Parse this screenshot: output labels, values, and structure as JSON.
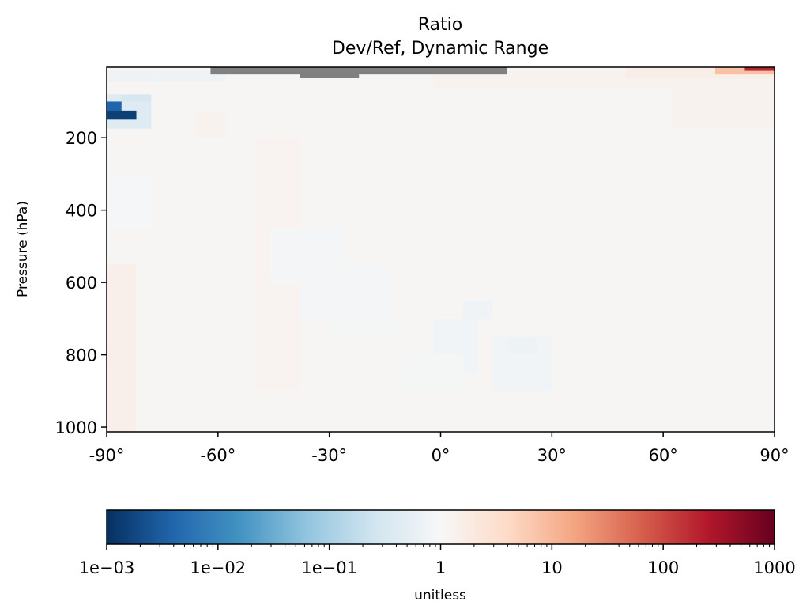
{
  "chart_data": {
    "type": "heatmap",
    "title": "Ratio",
    "subtitle": "Dev/Ref, Dynamic Range",
    "xlabel": "",
    "ylabel": "Pressure (hPa)",
    "x_ticks": [
      {
        "value": -90,
        "label": "-90°"
      },
      {
        "value": -60,
        "label": "-60°"
      },
      {
        "value": -30,
        "label": "-30°"
      },
      {
        "value": 0,
        "label": "0°"
      },
      {
        "value": 30,
        "label": "30°"
      },
      {
        "value": 60,
        "label": "60°"
      },
      {
        "value": 90,
        "label": "90°"
      }
    ],
    "y_ticks": [
      {
        "value": 200,
        "label": "200"
      },
      {
        "value": 400,
        "label": "400"
      },
      {
        "value": 600,
        "label": "600"
      },
      {
        "value": 800,
        "label": "800"
      },
      {
        "value": 1000,
        "label": "1000"
      }
    ],
    "xlim": [
      -90,
      90
    ],
    "ylim": [
      1013,
      5
    ],
    "colorbar": {
      "label": "unitless",
      "scale": "log",
      "range": [
        0.001,
        1000
      ],
      "colormap": "RdBu_r",
      "ticks": [
        {
          "value": 0.001,
          "label": "1e−03"
        },
        {
          "value": 0.01,
          "label": "1e−02"
        },
        {
          "value": 0.1,
          "label": "1e−01"
        },
        {
          "value": 1,
          "label": "1"
        },
        {
          "value": 10,
          "label": "10"
        },
        {
          "value": 100,
          "label": "100"
        },
        {
          "value": 1000,
          "label": "1000"
        }
      ]
    },
    "missing_color": "#808080",
    "grid_lat": [
      -90,
      -86,
      -82,
      -78,
      -74,
      -70,
      -66,
      -62,
      -58,
      -54,
      -50,
      -46,
      -42,
      -38,
      -34,
      -30,
      -26,
      -22,
      -18,
      -14,
      -10,
      -6,
      -2,
      2,
      6,
      10,
      14,
      18,
      22,
      26,
      30,
      34,
      38,
      42,
      46,
      50,
      54,
      58,
      62,
      66,
      70,
      74,
      78,
      82,
      86,
      90
    ],
    "grid_pressure": [
      5,
      15,
      25,
      35,
      45,
      60,
      80,
      100,
      125,
      150,
      175,
      200,
      250,
      300,
      350,
      400,
      450,
      500,
      550,
      600,
      650,
      700,
      750,
      800,
      850,
      900,
      950,
      1013
    ],
    "background_ratio": 1.08,
    "regions": [
      {
        "lat": [
          -90,
          -80
        ],
        "p": [
          85,
          175
        ],
        "ratio": 0.4
      },
      {
        "lat": [
          -90,
          -86
        ],
        "p": [
          100,
          150
        ],
        "ratio": 0.004
      },
      {
        "lat": [
          -90,
          -84
        ],
        "p": [
          120,
          140
        ],
        "ratio": 0.0015
      },
      {
        "lat": [
          -86,
          -80
        ],
        "p": [
          85,
          110
        ],
        "ratio": 0.3
      },
      {
        "lat": [
          -90,
          -60
        ],
        "p": [
          15,
          50
        ],
        "ratio": 0.7
      },
      {
        "lat": [
          -90,
          -82
        ],
        "p": [
          570,
          1013
        ],
        "ratio": 1.45
      },
      {
        "lat": [
          -66,
          -58
        ],
        "p": [
          125,
          200
        ],
        "ratio": 1.25
      },
      {
        "lat": [
          -50,
          -38
        ],
        "p": [
          200,
          900
        ],
        "ratio": 1.2
      },
      {
        "lat": [
          -90,
          -80
        ],
        "p": [
          300,
          430
        ],
        "ratio": 0.92
      },
      {
        "lat": [
          -46,
          -26
        ],
        "p": [
          450,
          600
        ],
        "ratio": 0.85
      },
      {
        "lat": [
          -38,
          -14
        ],
        "p": [
          550,
          700
        ],
        "ratio": 0.85
      },
      {
        "lat": [
          -30,
          -10
        ],
        "p": [
          680,
          760
        ],
        "ratio": 0.9
      },
      {
        "lat": [
          -2,
          10
        ],
        "p": [
          700,
          850
        ],
        "ratio": 0.8
      },
      {
        "lat": [
          6,
          14
        ],
        "p": [
          640,
          720
        ],
        "ratio": 0.75
      },
      {
        "lat": [
          14,
          30
        ],
        "p": [
          750,
          900
        ],
        "ratio": 0.8
      },
      {
        "lat": [
          18,
          26
        ],
        "p": [
          740,
          810
        ],
        "ratio": 0.7
      },
      {
        "lat": [
          -10,
          6
        ],
        "p": [
          800,
          900
        ],
        "ratio": 0.9
      },
      {
        "lat": [
          30,
          40
        ],
        "p": [
          350,
          900
        ],
        "ratio": 1.12
      },
      {
        "lat": [
          62,
          90
        ],
        "p": [
          40,
          180
        ],
        "ratio": 1.3
      },
      {
        "lat": [
          0,
          90
        ],
        "p": [
          15,
          60
        ],
        "ratio": 1.25
      },
      {
        "lat": [
          50,
          90
        ],
        "p": [
          5,
          30
        ],
        "ratio": 1.6
      },
      {
        "lat": [
          76,
          90
        ],
        "p": [
          5,
          22
        ],
        "ratio": 8
      },
      {
        "lat": [
          84,
          90
        ],
        "p": [
          5,
          18
        ],
        "ratio": 200
      },
      {
        "lat": [
          -62,
          16
        ],
        "p": [
          5,
          20
        ],
        "ratio": "missing"
      },
      {
        "lat": [
          -38,
          -22
        ],
        "p": [
          5,
          30
        ],
        "ratio": "missing"
      }
    ]
  }
}
